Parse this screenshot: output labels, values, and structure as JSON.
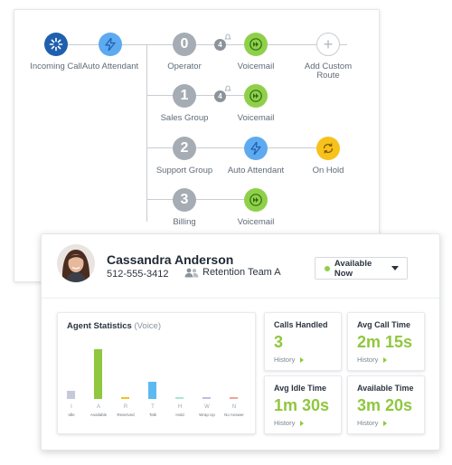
{
  "flow": {
    "nodes": {
      "incoming": {
        "label": "Incoming Call"
      },
      "auto_attendant": {
        "label": "Auto Attendant"
      },
      "operator": {
        "digit": "0",
        "label": "Operator",
        "ring_count": "4"
      },
      "sales": {
        "digit": "1",
        "label": "Sales Group",
        "ring_count": "4"
      },
      "support": {
        "digit": "2",
        "label": "Support Group"
      },
      "billing": {
        "digit": "3",
        "label": "Billing"
      },
      "vm_operator": {
        "label": "Voicemail"
      },
      "vm_sales": {
        "label": "Voicemail"
      },
      "vm_billing": {
        "label": "Voicemail"
      },
      "support_auto_attendant": {
        "label": "Auto Attendant"
      },
      "on_hold": {
        "label": "On Hold"
      },
      "add_route": {
        "label": "Add Custom Route",
        "symbol": "+"
      }
    },
    "colors": {
      "dark_blue": "#1f5fae",
      "blue": "#5eaaf0",
      "gray": "#a6acb4",
      "green": "#8fd04a",
      "yellow": "#f6c21c"
    }
  },
  "agent": {
    "name": "Cassandra Anderson",
    "phone": "512-555-3412",
    "team": "Retention Team A",
    "status": "Available Now",
    "status_color": "#8fd04a"
  },
  "stats": {
    "title": "Agent Statistics",
    "subtitle": "(Voice)",
    "chart_data": {
      "type": "bar",
      "categories": [
        "I",
        "A",
        "R",
        "T",
        "H",
        "W",
        "N"
      ],
      "category_names": [
        "Idle",
        "Available",
        "Reserved",
        "Talk",
        "Hold",
        "Wrap Up",
        "No Answer"
      ],
      "values": [
        11,
        64,
        1,
        22,
        1,
        1,
        1
      ],
      "colors": [
        "#c6c8dc",
        "#8fc73e",
        "#f6c21c",
        "#5eb9f0",
        "#a8e6d8",
        "#c9b7e3",
        "#f2a39a"
      ],
      "ylim": [
        0,
        70
      ]
    }
  },
  "metrics": [
    {
      "title": "Calls Handled",
      "value": "3",
      "history": "History"
    },
    {
      "title": "Avg Call Time",
      "value": "2m 15s",
      "history": "History"
    },
    {
      "title": "Avg Idle Time",
      "value": "1m 30s",
      "history": "History"
    },
    {
      "title": "Available Time",
      "value": "3m 20s",
      "history": "History"
    }
  ]
}
